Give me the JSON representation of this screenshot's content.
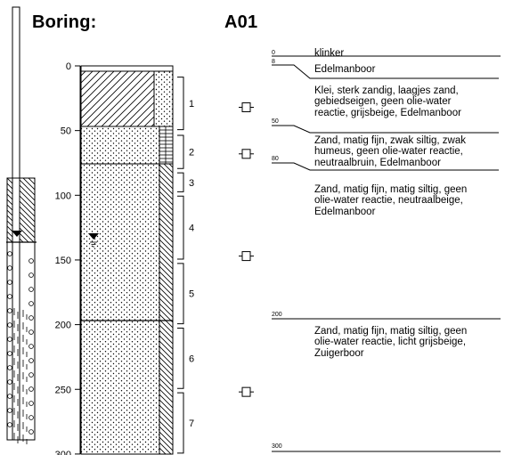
{
  "header": {
    "title_label": "Boring:",
    "boring_id": "A01"
  },
  "depth_axis": {
    "ticks": [
      0,
      50,
      100,
      150,
      200,
      250,
      300
    ]
  },
  "segments": [
    {
      "number": "1",
      "from": 8,
      "to": 50
    },
    {
      "number": "2",
      "from": 53,
      "to": 80
    },
    {
      "number": "3",
      "from": 82,
      "to": 98
    },
    {
      "number": "4",
      "from": 100,
      "to": 150
    },
    {
      "number": "5",
      "from": 152,
      "to": 200
    },
    {
      "number": "6",
      "from": 202,
      "to": 250
    },
    {
      "number": "7",
      "from": 252,
      "to": 300
    }
  ],
  "samples": [
    {
      "depth": 32
    },
    {
      "depth": 68
    },
    {
      "depth": 147
    },
    {
      "depth": 252
    }
  ],
  "groundwater_level": 140,
  "layers": [
    {
      "top": 0,
      "bottom": 8,
      "top_label": "0",
      "description": "klinker"
    },
    {
      "top": 8,
      "bottom": 50,
      "top_label": "8",
      "description": "Edelmanboor"
    },
    {
      "top": 8,
      "bottom": 50,
      "top_label": "",
      "description": "Klei, sterk zandig, laagjes zand,\ngebiedseigen, geen olie-water\nreactie, grijsbeige, Edelmanboor"
    },
    {
      "top": 50,
      "bottom": 80,
      "top_label": "50",
      "description": "Zand, matig fijn, zwak siltig, zwak\nhumeus, geen olie-water reactie,\nneutraalbruin, Edelmanboor"
    },
    {
      "top": 80,
      "bottom": 200,
      "top_label": "80",
      "description": "Zand, matig fijn, matig siltig, geen\nolie-water reactie, neutraalbeige,\nEdelmanboor"
    },
    {
      "top": 200,
      "bottom": 300,
      "top_label": "200",
      "description": "Zand, matig fijn, matig siltig, geen\nolie-water reactie, licht grijsbeige,\nZuigerboor"
    },
    {
      "top": 300,
      "bottom": 300,
      "top_label": "300",
      "description": ""
    }
  ],
  "colors": {
    "line": "#000000",
    "background": "#ffffff"
  }
}
